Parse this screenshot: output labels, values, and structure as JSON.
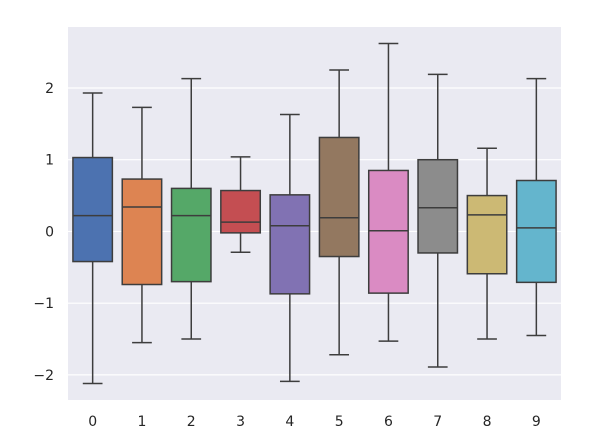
{
  "chart_data": {
    "type": "box",
    "title": "",
    "xlabel": "",
    "ylabel": "",
    "categories": [
      "0",
      "1",
      "2",
      "3",
      "4",
      "5",
      "6",
      "7",
      "8",
      "9"
    ],
    "ylim": [
      -2.35,
      2.85
    ],
    "yticks": [
      -2,
      -1,
      0,
      1,
      2
    ],
    "ytick_labels": [
      "−2",
      "−1",
      "0",
      "1",
      "2"
    ],
    "grid": true,
    "legend": "none",
    "colors": {
      "background": "#eaeaf2",
      "grid": "#ffffff",
      "line": "#3d3d3d",
      "boxes": [
        "#4c72b0",
        "#dd8452",
        "#55a868",
        "#c44e52",
        "#8172b3",
        "#937860",
        "#da8bc3",
        "#8c8c8c",
        "#ccb974",
        "#64b5cd"
      ]
    },
    "boxes": [
      {
        "category": "0",
        "whisker_low": -2.12,
        "q1": -0.42,
        "median": 0.22,
        "q3": 1.03,
        "whisker_high": 1.93
      },
      {
        "category": "1",
        "whisker_low": -1.55,
        "q1": -0.74,
        "median": 0.34,
        "q3": 0.73,
        "whisker_high": 1.73
      },
      {
        "category": "2",
        "whisker_low": -1.5,
        "q1": -0.7,
        "median": 0.22,
        "q3": 0.6,
        "whisker_high": 2.13
      },
      {
        "category": "3",
        "whisker_low": -0.29,
        "q1": -0.02,
        "median": 0.13,
        "q3": 0.57,
        "whisker_high": 1.04
      },
      {
        "category": "4",
        "whisker_low": -2.09,
        "q1": -0.87,
        "median": 0.08,
        "q3": 0.51,
        "whisker_high": 1.63
      },
      {
        "category": "5",
        "whisker_low": -1.72,
        "q1": -0.35,
        "median": 0.19,
        "q3": 1.31,
        "whisker_high": 2.25
      },
      {
        "category": "6",
        "whisker_low": -1.53,
        "q1": -0.86,
        "median": 0.01,
        "q3": 0.85,
        "whisker_high": 2.62
      },
      {
        "category": "7",
        "whisker_low": -1.89,
        "q1": -0.3,
        "median": 0.33,
        "q3": 1.0,
        "whisker_high": 2.19
      },
      {
        "category": "8",
        "whisker_low": -1.5,
        "q1": -0.59,
        "median": 0.23,
        "q3": 0.5,
        "whisker_high": 1.16
      },
      {
        "category": "9",
        "whisker_low": -1.45,
        "q1": -0.71,
        "median": 0.05,
        "q3": 0.71,
        "whisker_high": 2.13
      }
    ]
  }
}
